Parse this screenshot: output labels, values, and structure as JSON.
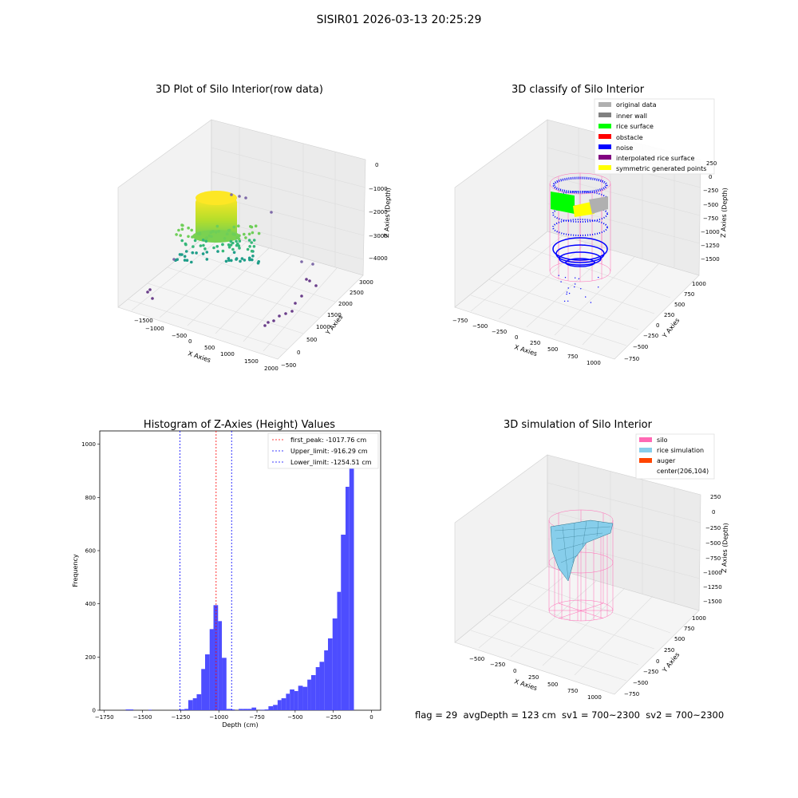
{
  "figure": {
    "suptitle": "SISIR01 2026-03-13 20:25:29",
    "status_line": "flag = 29  avgDepth = 123 cm  sv1 = 700~2300  sv2 = 700~2300"
  },
  "colors": {
    "noise": "#0000ff",
    "rice_surface": "#00ff00",
    "obstacle": "#ff0000",
    "original": "#b0b0b0",
    "inner_wall": "#808080",
    "interpolated": "#800080",
    "symmetric": "#ffff00",
    "silo": "#ff69b4",
    "rice_sim": "#87ceeb",
    "auger": "#ff4500",
    "hist": "#4d4dff"
  },
  "chart_data": [
    {
      "type": "scatter",
      "title": "3D Plot of Silo Interior(row data)",
      "xlabel": "X Axies",
      "ylabel": "Y Axies",
      "zlabel": "Z Axies (Depth)",
      "x_ticks": [
        "−1500",
        "−1000",
        "−500",
        "0",
        "500",
        "1000",
        "1500",
        "2000"
      ],
      "y_ticks": [
        "−500",
        "0",
        "500",
        "1000",
        "1500",
        "2000",
        "2500",
        "3000"
      ],
      "z_ticks": [
        "0",
        "−1000",
        "−2000",
        "−3000",
        "−4000"
      ],
      "colormap": "viridis (by depth)"
    },
    {
      "type": "scatter",
      "title": "3D classify of Silo Interior",
      "xlabel": "X Axies",
      "ylabel": "Y Axies",
      "zlabel": "Z Axies (Depth)",
      "x_ticks": [
        "−750",
        "−500",
        "−250",
        "0",
        "250",
        "500",
        "750",
        "1000"
      ],
      "y_ticks": [
        "−750",
        "−500",
        "−250",
        "0",
        "250",
        "500",
        "750",
        "1000"
      ],
      "z_ticks": [
        "250",
        "0",
        "−250",
        "−500",
        "−750",
        "−1000",
        "−1250",
        "−1500"
      ],
      "legend": [
        "original data",
        "inner wall",
        "rice surface",
        "obstacle",
        "noise",
        "interpolated rice surface",
        "symmetric generated points"
      ],
      "legend_position": "top-right"
    },
    {
      "type": "bar",
      "title": "Histogram of Z-Axies (Height) Values",
      "xlabel": "Depth (cm)",
      "ylabel": "Frequency",
      "xlim": [
        -1780,
        60
      ],
      "ylim": [
        0,
        1050
      ],
      "x_ticks": [
        -1750,
        -1500,
        -1250,
        -1000,
        -750,
        -500,
        -250,
        0
      ],
      "x_tick_labels": [
        "−1750",
        "−1500",
        "−1250",
        "−1000",
        "−750",
        "−500",
        "−250",
        "0"
      ],
      "y_ticks": [
        0,
        200,
        400,
        600,
        800,
        1000
      ],
      "y_tick_labels": [
        "0",
        "200",
        "400",
        "600",
        "800",
        "1000"
      ],
      "bins": [
        {
          "x0": -1610,
          "x1": -1560,
          "y": 3
        },
        {
          "x0": -1460,
          "x1": -1440,
          "y": 2
        },
        {
          "x0": -1260,
          "x1": -1225,
          "y": 3
        },
        {
          "x0": -1225,
          "x1": -1200,
          "y": 5
        },
        {
          "x0": -1200,
          "x1": -1170,
          "y": 38
        },
        {
          "x0": -1170,
          "x1": -1145,
          "y": 45
        },
        {
          "x0": -1145,
          "x1": -1115,
          "y": 60
        },
        {
          "x0": -1115,
          "x1": -1090,
          "y": 155
        },
        {
          "x0": -1090,
          "x1": -1060,
          "y": 210
        },
        {
          "x0": -1060,
          "x1": -1035,
          "y": 305
        },
        {
          "x0": -1035,
          "x1": -1005,
          "y": 395
        },
        {
          "x0": -1005,
          "x1": -980,
          "y": 335
        },
        {
          "x0": -980,
          "x1": -950,
          "y": 197
        },
        {
          "x0": -950,
          "x1": -920,
          "y": 5
        },
        {
          "x0": -920,
          "x1": -895,
          "y": 3
        },
        {
          "x0": -870,
          "x1": -840,
          "y": 5
        },
        {
          "x0": -840,
          "x1": -810,
          "y": 5
        },
        {
          "x0": -810,
          "x1": -785,
          "y": 5
        },
        {
          "x0": -785,
          "x1": -755,
          "y": 10
        },
        {
          "x0": -730,
          "x1": -700,
          "y": 2
        },
        {
          "x0": -700,
          "x1": -675,
          "y": 3
        },
        {
          "x0": -675,
          "x1": -645,
          "y": 15
        },
        {
          "x0": -645,
          "x1": -615,
          "y": 20
        },
        {
          "x0": -615,
          "x1": -590,
          "y": 38
        },
        {
          "x0": -590,
          "x1": -560,
          "y": 45
        },
        {
          "x0": -560,
          "x1": -535,
          "y": 62
        },
        {
          "x0": -535,
          "x1": -505,
          "y": 78
        },
        {
          "x0": -505,
          "x1": -480,
          "y": 72
        },
        {
          "x0": -480,
          "x1": -450,
          "y": 92
        },
        {
          "x0": -450,
          "x1": -420,
          "y": 88
        },
        {
          "x0": -420,
          "x1": -395,
          "y": 115
        },
        {
          "x0": -395,
          "x1": -365,
          "y": 132
        },
        {
          "x0": -365,
          "x1": -340,
          "y": 162
        },
        {
          "x0": -340,
          "x1": -310,
          "y": 182
        },
        {
          "x0": -310,
          "x1": -285,
          "y": 225
        },
        {
          "x0": -285,
          "x1": -255,
          "y": 270
        },
        {
          "x0": -255,
          "x1": -225,
          "y": 345
        },
        {
          "x0": -225,
          "x1": -200,
          "y": 445
        },
        {
          "x0": -200,
          "x1": -170,
          "y": 660
        },
        {
          "x0": -170,
          "x1": -145,
          "y": 840
        },
        {
          "x0": -145,
          "x1": -115,
          "y": 1000
        }
      ],
      "vlines": [
        {
          "x": -1017.76,
          "color": "#ff0000",
          "label": "first_peak: -1017.76 cm"
        },
        {
          "x": -916.29,
          "color": "#0000ff",
          "label": "Upper_limit: -916.29 cm"
        },
        {
          "x": -1254.51,
          "color": "#0000ff",
          "label": "Lower_limit: -1254.51 cm"
        }
      ],
      "legend_position": "top-right"
    },
    {
      "type": "surface",
      "title": "3D simulation of Silo Interior",
      "xlabel": "X Axies",
      "ylabel": "Y Axies",
      "zlabel": "Z Axies (Depth)",
      "x_ticks": [
        "−500",
        "−250",
        "0",
        "250",
        "500",
        "750",
        "1000"
      ],
      "y_ticks": [
        "−750",
        "−500",
        "−250",
        "0",
        "250",
        "500",
        "750",
        "1000"
      ],
      "z_ticks": [
        "250",
        "0",
        "−250",
        "−500",
        "−750",
        "−1000",
        "−1250",
        "−1500"
      ],
      "legend": [
        "silo",
        "rice simulation",
        "auger",
        "center(206,104)"
      ],
      "legend_position": "top-right"
    }
  ]
}
